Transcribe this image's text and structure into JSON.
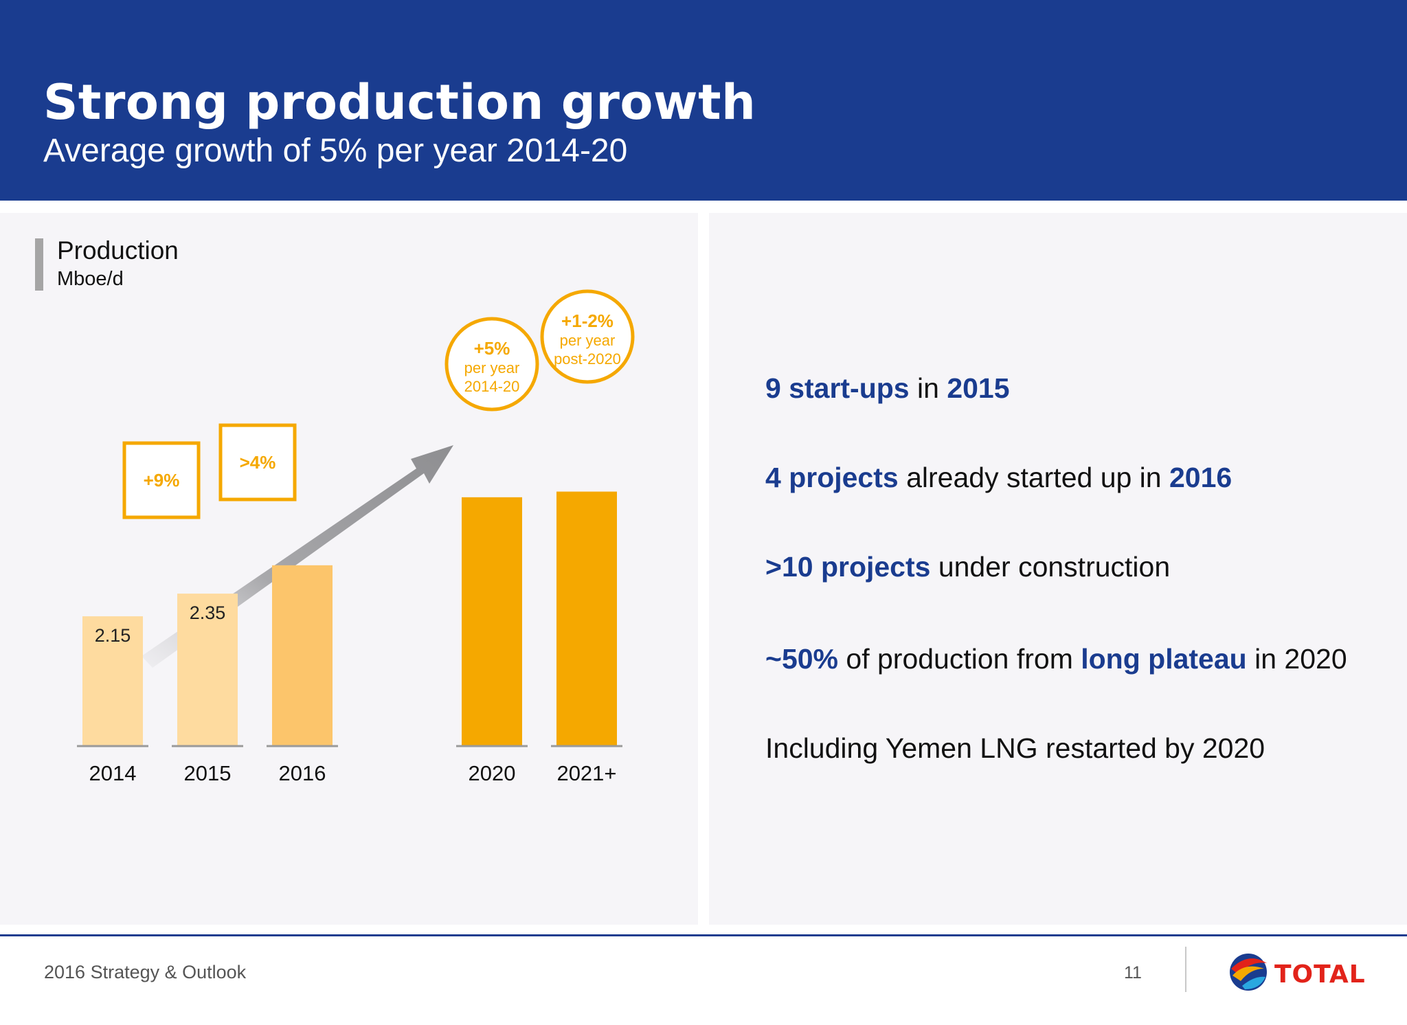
{
  "header": {
    "title": "Strong production growth",
    "subtitle": "Average growth of 5% per year 2014-20",
    "background_color": "#1a3c8f"
  },
  "chart_data": {
    "type": "bar",
    "title": "Production",
    "ylabel": "Mboe/d",
    "categories": [
      "2014",
      "2015",
      "2016",
      "2020",
      "2021+"
    ],
    "values": [
      2.15,
      2.35,
      2.6,
      3.2,
      3.25
    ],
    "data_labels": [
      "2.15",
      "2.35",
      "",
      "",
      ""
    ],
    "colors": [
      "#fedb9f",
      "#fedb9f",
      "#fcc56b",
      "#f5a800",
      "#f5a800"
    ],
    "growth_boxes": [
      {
        "label": "+9%"
      },
      {
        "label": ">4%"
      }
    ],
    "growth_circles": [
      {
        "line1": "+5%",
        "line2": "per year",
        "line3": "2014-20"
      },
      {
        "line1": "+1-2%",
        "line2": "per year",
        "line3": "post-2020"
      }
    ],
    "accent_color": "#f5a800",
    "grid": false
  },
  "bullets": [
    [
      {
        "t": "9 start-ups",
        "b": true
      },
      {
        "t": " in ",
        "b": false
      },
      {
        "t": "2015",
        "b": true
      }
    ],
    [
      {
        "t": "4 projects",
        "b": true
      },
      {
        "t": " already started up in ",
        "b": false
      },
      {
        "t": "2016",
        "b": true
      }
    ],
    [
      {
        "t": ">10 projects",
        "b": true
      },
      {
        "t": " under construction",
        "b": false
      }
    ],
    [
      {
        "t": "~50%",
        "b": true
      },
      {
        "t": " of production from ",
        "b": false
      },
      {
        "t": "long plateau",
        "b": true
      },
      {
        "t": " in 2020",
        "b": false
      }
    ],
    [
      {
        "t": "Including Yemen LNG restarted by 2020",
        "b": false
      }
    ]
  ],
  "footer": {
    "text": "2016 Strategy & Outlook",
    "page": "11",
    "logo_text": "TOTAL"
  }
}
